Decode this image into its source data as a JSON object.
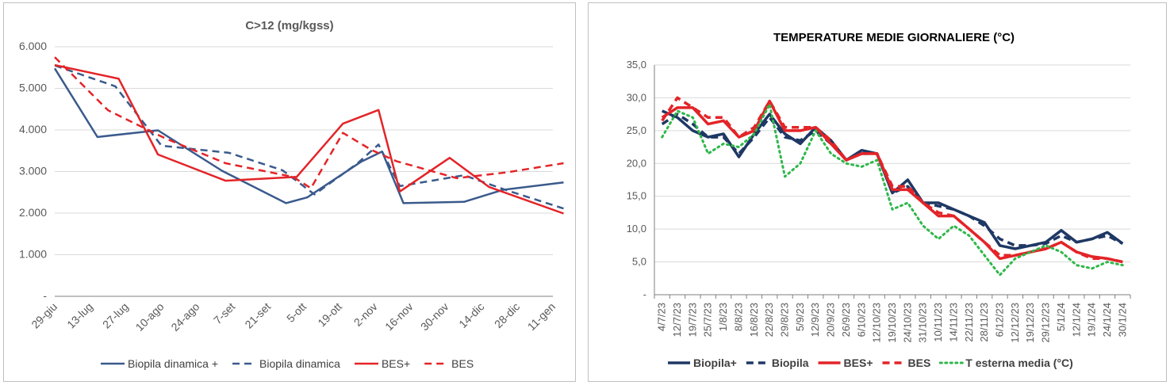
{
  "colors": {
    "navy": "#2f4a75",
    "navy_dark": "#1f3864",
    "red": "#e32428",
    "green": "#2eb84a",
    "grid": "#d9d9d9",
    "axis": "#7f7f7f"
  },
  "chart_data": [
    {
      "type": "line",
      "title": "C>12 (mg/kgss)",
      "xlabel": "",
      "ylabel": "",
      "categories": [
        "29-giu",
        "13-lug",
        "27-lug",
        "10-ago",
        "24-ago",
        "7-set",
        "21-set",
        "5-ott",
        "19-ott",
        "2-nov",
        "16-nov",
        "30-nov",
        "14-dic",
        "28-dic",
        "11-gen"
      ],
      "yticks": [
        "-",
        "1.000",
        "2.000",
        "3.000",
        "4.000",
        "5.000",
        "6.000"
      ],
      "ylim": [
        0,
        6000
      ],
      "grid": true,
      "legend_position": "bottom",
      "series": [
        {
          "name": "Biopila dinamica +",
          "style": "solid",
          "color": "#3a5a8c",
          "points": [
            [
              0,
              5480
            ],
            [
              1.2,
              3830
            ],
            [
              2.9,
              3990
            ],
            [
              4.7,
              3020
            ],
            [
              6.5,
              2240
            ],
            [
              7.1,
              2380
            ],
            [
              8.6,
              3230
            ],
            [
              9.2,
              3480
            ],
            [
              9.8,
              2240
            ],
            [
              11.5,
              2270
            ],
            [
              12.6,
              2560
            ],
            [
              14.3,
              2740
            ]
          ]
        },
        {
          "name": "Biopila dinamica",
          "style": "dashed",
          "color": "#3a5a8c",
          "points": [
            [
              0,
              5550
            ],
            [
              1.7,
              5050
            ],
            [
              3.0,
              3620
            ],
            [
              4.9,
              3450
            ],
            [
              6.4,
              3030
            ],
            [
              7.3,
              2450
            ],
            [
              8.5,
              3190
            ],
            [
              9.1,
              3650
            ],
            [
              9.7,
              2650
            ],
            [
              11.5,
              2910
            ],
            [
              12.7,
              2550
            ],
            [
              14.3,
              2110
            ]
          ]
        },
        {
          "name": "BES+",
          "style": "solid",
          "color": "#e32428",
          "points": [
            [
              0,
              5560
            ],
            [
              1.8,
              5230
            ],
            [
              2.9,
              3410
            ],
            [
              4.8,
              2780
            ],
            [
              6.8,
              2870
            ],
            [
              8.1,
              4150
            ],
            [
              9.1,
              4480
            ],
            [
              9.7,
              2520
            ],
            [
              11.1,
              3330
            ],
            [
              12.2,
              2630
            ],
            [
              14.3,
              1990
            ]
          ]
        },
        {
          "name": "BES",
          "style": "dashed",
          "color": "#e32428",
          "points": [
            [
              0,
              5750
            ],
            [
              1.5,
              4470
            ],
            [
              3.1,
              3800
            ],
            [
              4.8,
              3200
            ],
            [
              6.7,
              2870
            ],
            [
              7.2,
              2600
            ],
            [
              8.1,
              3930
            ],
            [
              8.9,
              3520
            ],
            [
              9.6,
              3250
            ],
            [
              11.3,
              2840
            ],
            [
              12.7,
              2980
            ],
            [
              14.3,
              3200
            ]
          ]
        }
      ]
    },
    {
      "type": "line",
      "title": "TEMPERATURE MEDIE GIORNALIERE (°C)",
      "xlabel": "",
      "ylabel": "",
      "categories": [
        "4/7/23",
        "12/7/23",
        "19/7/23",
        "25/7/23",
        "1/8/23",
        "8/8/23",
        "16/8/23",
        "22/8/23",
        "29/8/23",
        "5/9/23",
        "12/9/23",
        "20/9/23",
        "26/9/23",
        "6/10/23",
        "12/10/23",
        "19/10/23",
        "24/10/23",
        "31/10/23",
        "10/11/23",
        "14/11/23",
        "22/11/23",
        "28/11/23",
        "6/12/23",
        "12/12/23",
        "19/12/23",
        "29/12/23",
        "5/1/24",
        "12/1/24",
        "19/1/24",
        "24/1/24",
        "30/1/24"
      ],
      "yticks": [
        "-",
        "5,0",
        "10,0",
        "15,0",
        "20,0",
        "25,0",
        "30,0",
        "35,0"
      ],
      "ylim": [
        0,
        35
      ],
      "grid": true,
      "legend_position": "bottom",
      "series": [
        {
          "name": "Biopila+",
          "style": "solid",
          "color": "#1f3864",
          "points": [
            [
              0,
              28.0
            ],
            [
              1,
              27.0
            ],
            [
              2,
              25.0
            ],
            [
              3,
              24.0
            ],
            [
              4,
              24.5
            ],
            [
              5,
              21.0
            ],
            [
              6,
              24.5
            ],
            [
              7,
              27.5
            ],
            [
              8,
              24.5
            ],
            [
              9,
              23.0
            ],
            [
              10,
              25.5
            ],
            [
              11,
              23.5
            ],
            [
              12,
              20.5
            ],
            [
              13,
              22.0
            ],
            [
              14,
              21.5
            ],
            [
              15,
              15.5
            ],
            [
              16,
              17.5
            ],
            [
              17,
              14.0
            ],
            [
              18,
              14.0
            ],
            [
              19,
              13.0
            ],
            [
              20,
              12.0
            ],
            [
              21,
              11.0
            ],
            [
              22,
              7.5
            ],
            [
              23,
              7.0
            ],
            [
              24,
              7.5
            ],
            [
              25,
              8.0
            ],
            [
              26,
              9.8
            ],
            [
              27,
              8.0
            ],
            [
              28,
              8.5
            ],
            [
              29,
              9.5
            ],
            [
              30,
              7.8
            ]
          ]
        },
        {
          "name": "Biopila",
          "style": "dashed",
          "color": "#1f3864",
          "points": [
            [
              0,
              26.0
            ],
            [
              1,
              27.5
            ],
            [
              2,
              26.0
            ],
            [
              3,
              24.0
            ],
            [
              4,
              24.0
            ],
            [
              5,
              21.5
            ],
            [
              6,
              24.0
            ],
            [
              7,
              27.0
            ],
            [
              8,
              24.0
            ],
            [
              9,
              23.5
            ],
            [
              10,
              25.0
            ],
            [
              11,
              23.0
            ],
            [
              12,
              20.5
            ],
            [
              13,
              21.5
            ],
            [
              14,
              21.5
            ],
            [
              15,
              15.5
            ],
            [
              16,
              16.5
            ],
            [
              17,
              14.0
            ],
            [
              18,
              13.5
            ],
            [
              19,
              13.0
            ],
            [
              20,
              12.0
            ],
            [
              21,
              10.5
            ],
            [
              22,
              8.5
            ],
            [
              23,
              7.5
            ],
            [
              24,
              7.5
            ],
            [
              25,
              7.8
            ],
            [
              26,
              9.0
            ],
            [
              27,
              8.0
            ],
            [
              28,
              8.5
            ],
            [
              29,
              9.0
            ],
            [
              30,
              7.8
            ]
          ]
        },
        {
          "name": "BES+",
          "style": "solid",
          "color": "#e32428",
          "points": [
            [
              0,
              27.0
            ],
            [
              1,
              28.5
            ],
            [
              2,
              28.5
            ],
            [
              3,
              26.0
            ],
            [
              4,
              26.5
            ],
            [
              5,
              24.0
            ],
            [
              6,
              25.0
            ],
            [
              7,
              29.5
            ],
            [
              8,
              25.0
            ],
            [
              9,
              25.0
            ],
            [
              10,
              25.5
            ],
            [
              11,
              23.0
            ],
            [
              12,
              20.5
            ],
            [
              13,
              21.5
            ],
            [
              14,
              21.5
            ],
            [
              15,
              16.0
            ],
            [
              16,
              16.0
            ],
            [
              17,
              14.0
            ],
            [
              18,
              12.0
            ],
            [
              19,
              12.0
            ],
            [
              20,
              10.0
            ],
            [
              21,
              8.0
            ],
            [
              22,
              5.5
            ],
            [
              23,
              6.0
            ],
            [
              24,
              6.5
            ],
            [
              25,
              7.0
            ],
            [
              26,
              8.0
            ],
            [
              27,
              6.5
            ],
            [
              28,
              5.8
            ],
            [
              29,
              5.5
            ],
            [
              30,
              5.0
            ]
          ]
        },
        {
          "name": "BES",
          "style": "dashed",
          "color": "#e32428",
          "points": [
            [
              0,
              26.5
            ],
            [
              1,
              30.0
            ],
            [
              2,
              28.5
            ],
            [
              3,
              27.0
            ],
            [
              4,
              27.0
            ],
            [
              5,
              24.0
            ],
            [
              6,
              25.5
            ],
            [
              7,
              29.5
            ],
            [
              8,
              25.5
            ],
            [
              9,
              25.5
            ],
            [
              10,
              25.5
            ],
            [
              11,
              23.5
            ],
            [
              12,
              20.5
            ],
            [
              13,
              21.5
            ],
            [
              14,
              21.5
            ],
            [
              15,
              16.5
            ],
            [
              16,
              16.5
            ],
            [
              17,
              14.0
            ],
            [
              18,
              12.5
            ],
            [
              19,
              12.0
            ],
            [
              20,
              10.0
            ],
            [
              21,
              8.0
            ],
            [
              22,
              6.0
            ],
            [
              23,
              6.0
            ],
            [
              24,
              6.5
            ],
            [
              25,
              7.0
            ],
            [
              26,
              8.0
            ],
            [
              27,
              6.5
            ],
            [
              28,
              5.5
            ],
            [
              29,
              5.5
            ],
            [
              30,
              5.0
            ]
          ]
        },
        {
          "name": "T esterna media (°C)",
          "style": "dotted",
          "color": "#2eb84a",
          "points": [
            [
              0,
              24.0
            ],
            [
              1,
              28.0
            ],
            [
              2,
              27.0
            ],
            [
              3,
              21.5
            ],
            [
              4,
              23.0
            ],
            [
              5,
              22.5
            ],
            [
              6,
              24.5
            ],
            [
              7,
              29.0
            ],
            [
              8,
              18.0
            ],
            [
              9,
              20.0
            ],
            [
              10,
              25.0
            ],
            [
              11,
              21.5
            ],
            [
              12,
              20.0
            ],
            [
              13,
              19.5
            ],
            [
              14,
              20.5
            ],
            [
              15,
              13.0
            ],
            [
              16,
              14.0
            ],
            [
              17,
              10.5
            ],
            [
              18,
              8.5
            ],
            [
              19,
              10.5
            ],
            [
              20,
              9.0
            ],
            [
              21,
              6.0
            ],
            [
              22,
              3.0
            ],
            [
              23,
              5.5
            ],
            [
              24,
              6.5
            ],
            [
              25,
              7.5
            ],
            [
              26,
              6.5
            ],
            [
              27,
              4.5
            ],
            [
              28,
              4.0
            ],
            [
              29,
              5.0
            ],
            [
              30,
              4.5
            ]
          ]
        }
      ]
    }
  ]
}
